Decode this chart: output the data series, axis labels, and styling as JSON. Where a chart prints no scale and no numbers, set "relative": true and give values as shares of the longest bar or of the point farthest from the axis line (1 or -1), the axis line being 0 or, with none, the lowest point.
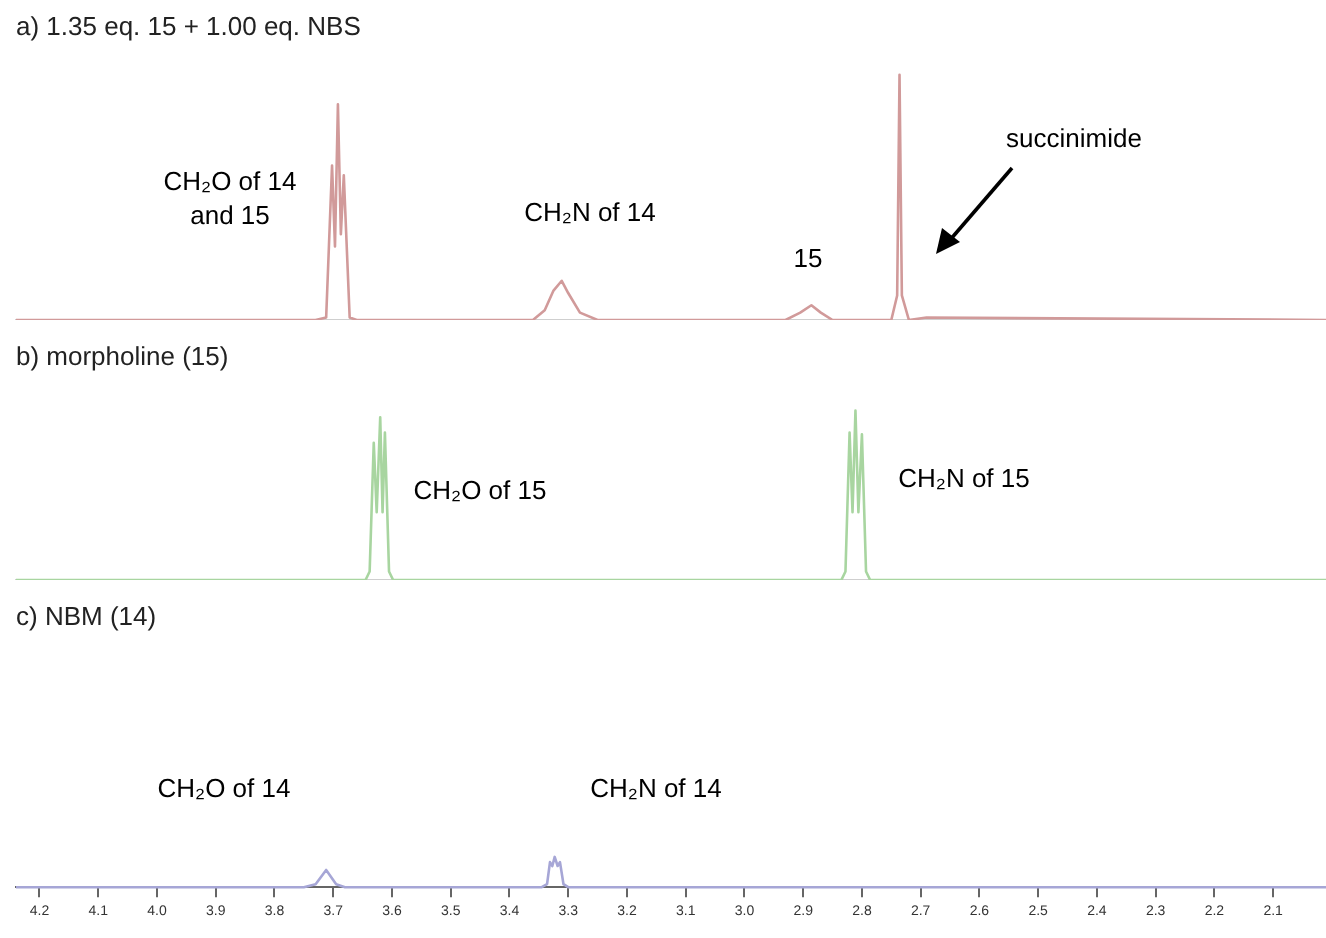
{
  "chart_data": [
    {
      "type": "line",
      "title": "a) 1.35 eq. 15 + 1.00 eq. NBS",
      "relative": true,
      "xlim": [
        4.24,
        2.01
      ],
      "tick_labels": false,
      "grid": false,
      "legend": false,
      "marker": "none",
      "series": [
        {
          "color": "#d19a9a",
          "x": [
            4.24,
            3.73,
            3.712,
            3.702,
            3.697,
            3.692,
            3.687,
            3.682,
            3.672,
            3.66,
            3.36,
            3.34,
            3.325,
            3.311,
            3.3,
            3.28,
            3.25,
            2.93,
            2.905,
            2.886,
            2.87,
            2.85,
            2.75,
            2.74,
            2.736,
            2.732,
            2.72,
            2.69,
            2.01
          ],
          "values": [
            0,
            0,
            0.01,
            0.63,
            0.3,
            0.88,
            0.35,
            0.59,
            0.01,
            0,
            0,
            0.04,
            0.12,
            0.16,
            0.11,
            0.03,
            0,
            0,
            0.03,
            0.06,
            0.03,
            0,
            0,
            0.1,
            1,
            0.1,
            0,
            0.01,
            0
          ]
        }
      ],
      "annotations": [
        "CH₂O of 14\nand 15",
        "CH₂N of 14",
        "15",
        "succinimide"
      ]
    },
    {
      "type": "line",
      "title": "b) morpholine (15)",
      "relative": true,
      "xlim": [
        4.24,
        2.01
      ],
      "tick_labels": false,
      "grid": false,
      "legend": false,
      "marker": "none",
      "series": [
        {
          "color": "#a8d5a0",
          "x": [
            4.24,
            3.645,
            3.638,
            3.631,
            3.626,
            3.62,
            3.616,
            3.612,
            3.605,
            3.598,
            2.835,
            2.828,
            2.821,
            2.816,
            2.811,
            2.806,
            2.8,
            2.793,
            2.786,
            2.01
          ],
          "values": [
            0,
            0,
            0.05,
            0.81,
            0.4,
            0.96,
            0.4,
            0.87,
            0.05,
            0,
            0,
            0.05,
            0.87,
            0.4,
            1,
            0.4,
            0.86,
            0.05,
            0,
            0
          ]
        }
      ],
      "annotations": [
        "CH₂O of 15",
        "CH₂N of 15"
      ]
    },
    {
      "type": "line",
      "title": "c) NBM (14)",
      "relative": true,
      "xlim": [
        4.24,
        2.01
      ],
      "grid": false,
      "legend": false,
      "marker": "none",
      "xticks": [
        4.2,
        4.1,
        {
          "value": 4.0,
          "label": "4.0"
        },
        3.9,
        3.8,
        3.7,
        3.6,
        3.5,
        3.4,
        3.3,
        3.2,
        3.1,
        {
          "value": 3.0,
          "label": "3.0"
        },
        2.9,
        2.8,
        2.7,
        2.6,
        2.5,
        2.4,
        2.3,
        2.2,
        2.1
      ],
      "series": [
        {
          "color": "#a6a6d6",
          "x": [
            4.24,
            3.75,
            3.73,
            3.712,
            3.695,
            3.68,
            3.345,
            3.336,
            3.331,
            3.327,
            3.323,
            3.318,
            3.314,
            3.308,
            3.3,
            2.01
          ],
          "values": [
            0,
            0,
            0.1,
            0.57,
            0.1,
            0,
            0,
            0.1,
            0.83,
            0.7,
            1,
            0.7,
            0.83,
            0.1,
            0,
            0
          ]
        }
      ],
      "annotations": [
        "CH₂O of 14",
        "CH₂N of 14"
      ]
    }
  ]
}
